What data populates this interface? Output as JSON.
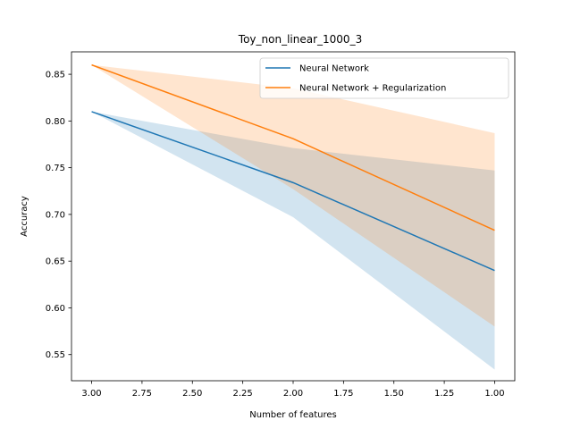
{
  "chart_data": {
    "type": "line",
    "title": "Toy_non_linear_1000_3",
    "xlabel": "Number of features",
    "ylabel": "Accuracy",
    "x": [
      3.0,
      2.0,
      1.0
    ],
    "xlim": [
      3.1,
      0.9
    ],
    "ylim": [
      0.522,
      0.874
    ],
    "xticks": [
      3.0,
      2.75,
      2.5,
      2.25,
      2.0,
      1.75,
      1.5,
      1.25,
      1.0
    ],
    "yticks": [
      0.55,
      0.6,
      0.65,
      0.7,
      0.75,
      0.8,
      0.85
    ],
    "xtick_labels": [
      "3.00",
      "2.75",
      "2.50",
      "2.25",
      "2.00",
      "1.75",
      "1.50",
      "1.25",
      "1.00"
    ],
    "ytick_labels": [
      "0.55",
      "0.60",
      "0.65",
      "0.70",
      "0.75",
      "0.80",
      "0.85"
    ],
    "grid": false,
    "legend_position": "top-right",
    "series": [
      {
        "name": "Neural Network",
        "color": "#1f77b4",
        "band_color": "#1f77b4",
        "values": [
          0.81,
          0.734,
          0.64
        ],
        "lower": [
          0.81,
          0.697,
          0.534
        ],
        "upper": [
          0.81,
          0.771,
          0.747
        ]
      },
      {
        "name": "Neural Network + Regularization",
        "color": "#ff7f0e",
        "band_color": "#ff7f0e",
        "values": [
          0.86,
          0.781,
          0.683
        ],
        "lower": [
          0.86,
          0.727,
          0.58
        ],
        "upper": [
          0.86,
          0.835,
          0.787
        ]
      }
    ]
  }
}
